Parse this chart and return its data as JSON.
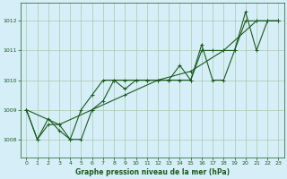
{
  "background_color": "#d6eef8",
  "grid_color": "#aac8aa",
  "line_color": "#1a5c1a",
  "xlabel": "Graphe pression niveau de la mer (hPa)",
  "xlim": [
    -0.5,
    23.5
  ],
  "ylim": [
    1007.4,
    1012.6
  ],
  "yticks": [
    1008,
    1009,
    1010,
    1011,
    1012
  ],
  "xticks": [
    0,
    1,
    2,
    3,
    4,
    5,
    6,
    7,
    8,
    9,
    10,
    11,
    12,
    13,
    14,
    15,
    16,
    17,
    18,
    19,
    20,
    21,
    22,
    23
  ],
  "line1_x": [
    0,
    1,
    2,
    3,
    4,
    5,
    6,
    7,
    8,
    9,
    10,
    11,
    12,
    13,
    14,
    15,
    16,
    17,
    18,
    19,
    20,
    21,
    22,
    23
  ],
  "line1_y": [
    1009,
    1008,
    1008.5,
    1008.5,
    1008,
    1008,
    1009,
    1009.3,
    1010,
    1010,
    1010,
    1010,
    1010,
    1010,
    1010,
    1010,
    1011,
    1011,
    1011,
    1011,
    1012,
    1012,
    1012,
    1012
  ],
  "line2_x": [
    0,
    1,
    2,
    3,
    4,
    5,
    6,
    7,
    8,
    9,
    10,
    11,
    12,
    13,
    14,
    15,
    16,
    17,
    18,
    19,
    20,
    21,
    22,
    23
  ],
  "line2_y": [
    1009,
    1008,
    1008.7,
    1008.3,
    1008,
    1009,
    1009.5,
    1010,
    1010,
    1009.7,
    1010,
    1010,
    1010,
    1010,
    1010.5,
    1010,
    1011.2,
    1010,
    1010,
    1011,
    1012.3,
    1011,
    1012,
    1012
  ],
  "line3_x": [
    0,
    3,
    6,
    9,
    12,
    15,
    18,
    21,
    23
  ],
  "line3_y": [
    1009,
    1008.5,
    1009,
    1009.5,
    1010,
    1010.3,
    1011,
    1012,
    1012
  ]
}
